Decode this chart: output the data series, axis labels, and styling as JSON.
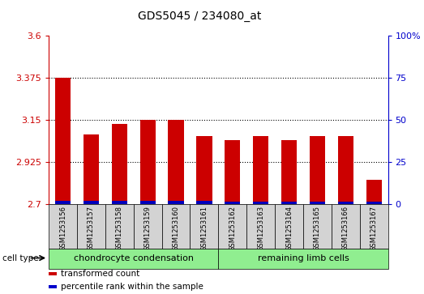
{
  "title": "GDS5045 / 234080_at",
  "samples": [
    "GSM1253156",
    "GSM1253157",
    "GSM1253158",
    "GSM1253159",
    "GSM1253160",
    "GSM1253161",
    "GSM1253162",
    "GSM1253163",
    "GSM1253164",
    "GSM1253165",
    "GSM1253166",
    "GSM1253167"
  ],
  "red_values": [
    3.375,
    3.07,
    3.13,
    3.15,
    3.15,
    3.065,
    3.04,
    3.065,
    3.04,
    3.065,
    3.065,
    2.83
  ],
  "blue_values": [
    0.018,
    0.018,
    0.018,
    0.018,
    0.018,
    0.018,
    0.015,
    0.015,
    0.015,
    0.015,
    0.015,
    0.015
  ],
  "ylim_left": [
    2.7,
    3.6
  ],
  "ylim_right": [
    0,
    100
  ],
  "yticks_left": [
    2.7,
    2.925,
    3.15,
    3.375,
    3.6
  ],
  "yticks_right": [
    0,
    25,
    50,
    75,
    100
  ],
  "ytick_labels_right": [
    "0",
    "25",
    "50",
    "75",
    "100%"
  ],
  "gridlines": [
    3.375,
    3.15,
    2.925
  ],
  "cell_type_groups": [
    {
      "label": "chondrocyte condensation",
      "indices": [
        0,
        1,
        2,
        3,
        4,
        5
      ],
      "color": "#90EE90"
    },
    {
      "label": "remaining limb cells",
      "indices": [
        6,
        7,
        8,
        9,
        10,
        11
      ],
      "color": "#90EE90"
    }
  ],
  "cell_type_label": "cell type",
  "legend_items": [
    {
      "color": "#CC0000",
      "label": "transformed count"
    },
    {
      "color": "#0000CC",
      "label": "percentile rank within the sample"
    }
  ],
  "bar_width": 0.55,
  "red_color": "#CC0000",
  "blue_color": "#0000BB",
  "plot_bg": "#FFFFFF",
  "grid_color": "#000000",
  "left_axis_color": "#CC0000",
  "right_axis_color": "#0000CC",
  "base_value": 2.7
}
